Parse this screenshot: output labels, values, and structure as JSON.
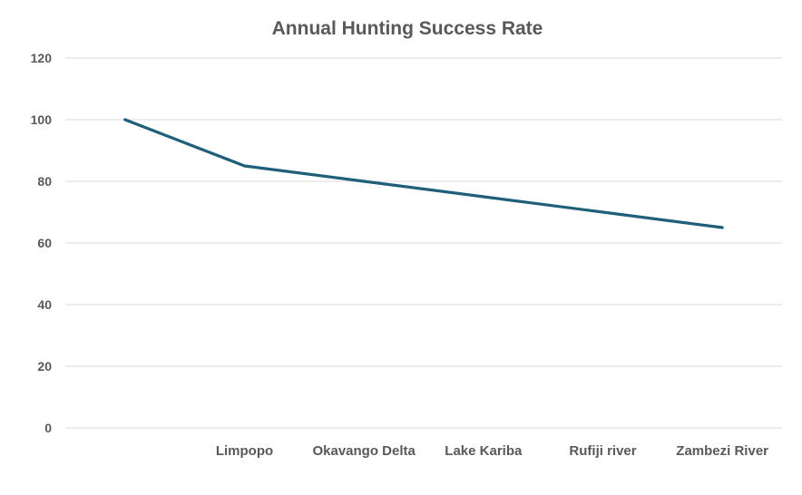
{
  "chart_data": {
    "type": "line",
    "title": "Annual Hunting Success Rate",
    "categories": [
      "",
      "Limpopo",
      "Okavango Delta",
      "Lake Kariba",
      "Rufiji river",
      "Zambezi River"
    ],
    "values": [
      100,
      85,
      80,
      75,
      70,
      65
    ],
    "ylim": [
      0,
      120
    ],
    "yticks": [
      0,
      20,
      40,
      60,
      80,
      100,
      120
    ],
    "grid": true,
    "legend": "none",
    "line_color": "#1f5f7a",
    "xlabel": "",
    "ylabel": ""
  }
}
